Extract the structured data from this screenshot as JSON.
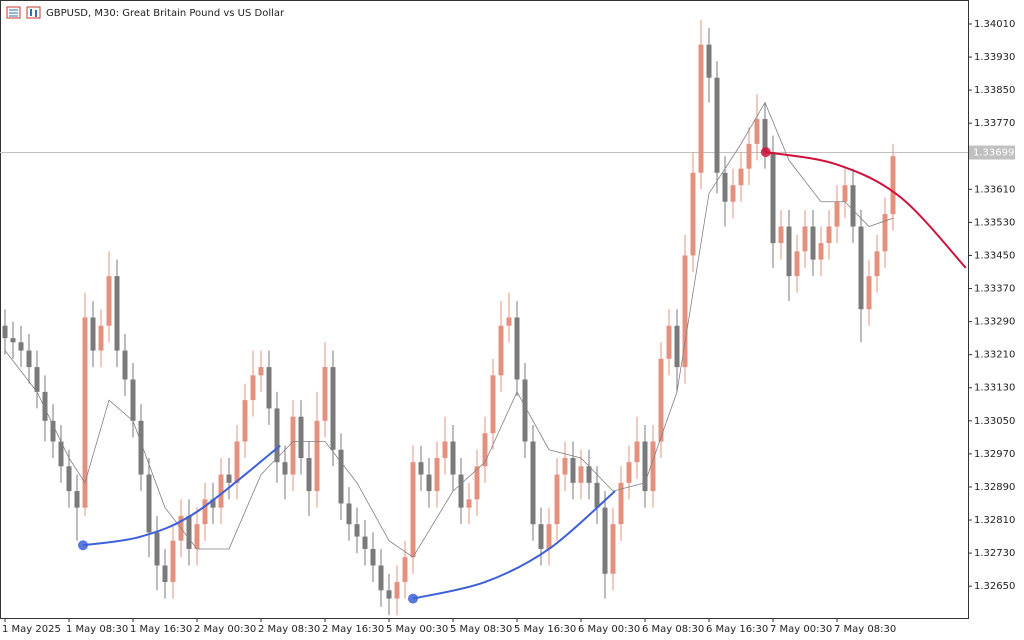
{
  "chart_data": {
    "type": "candlestick",
    "title": "GBPUSD, M30:  Great Britain Pound vs US Dollar",
    "categories": [
      "1 May 2025",
      null,
      null,
      null,
      null,
      null,
      null,
      null,
      "1 May 08:30",
      null,
      null,
      null,
      null,
      null,
      null,
      null,
      "1 May 16:30",
      null,
      null,
      null,
      null,
      null,
      null,
      null,
      "2 May 00:30",
      null,
      null,
      null,
      null,
      null,
      null,
      null,
      "2 May 08:30",
      null,
      null,
      null,
      null,
      null,
      null,
      null,
      "2 May 16:30",
      null,
      null,
      null,
      null,
      null,
      null,
      null,
      "5 May 00:30",
      null,
      null,
      null,
      null,
      null,
      null,
      null,
      "5 May 08:30",
      null,
      null,
      null,
      null,
      null,
      null,
      null,
      "5 May 16:30",
      null,
      null,
      null,
      null,
      null,
      null,
      null,
      "6 May 00:30",
      null,
      null,
      null,
      null,
      null,
      null,
      null,
      "6 May 08:30",
      null,
      null,
      null,
      null,
      null,
      null,
      null,
      "6 May 16:30",
      null,
      null,
      null,
      null,
      null,
      null,
      null,
      "7 May 00:30",
      null,
      null,
      null,
      null,
      null,
      null,
      null,
      "7 May 08:30",
      null,
      null,
      null,
      null,
      null,
      null,
      null
    ],
    "open": [
      1.3328,
      1.3325,
      1.3324,
      1.3322,
      1.3318,
      1.3312,
      1.3305,
      1.33,
      1.3294,
      1.3288,
      1.3284,
      1.333,
      1.3322,
      1.3328,
      1.334,
      1.3322,
      1.3315,
      1.3305,
      1.3292,
      1.3278,
      1.327,
      1.3266,
      1.3276,
      1.3282,
      1.3274,
      1.328,
      1.3286,
      1.3284,
      1.3292,
      1.329,
      1.33,
      1.331,
      1.3316,
      1.3318,
      1.3308,
      1.3295,
      1.3292,
      1.3306,
      1.3296,
      1.3288,
      1.3305,
      1.3318,
      1.3298,
      1.3285,
      1.328,
      1.3277,
      1.3274,
      1.327,
      1.3264,
      1.3262,
      1.3266,
      1.3272,
      1.3295,
      1.3292,
      1.3288,
      1.3296,
      1.33,
      1.3292,
      1.3284,
      1.3286,
      1.3294,
      1.3302,
      1.3316,
      1.3328,
      1.333,
      1.3315,
      1.33,
      1.328,
      1.3274,
      1.328,
      1.3292,
      1.3296,
      1.329,
      1.3294,
      1.329,
      1.3284,
      1.3268,
      1.328,
      1.329,
      1.3295,
      1.33,
      1.3288,
      1.33,
      1.332,
      1.3328,
      1.3318,
      1.3345,
      1.3365,
      1.3396,
      1.3388,
      1.3365,
      1.3358,
      1.3362,
      1.3366,
      1.3372,
      1.3378,
      1.337,
      1.3348,
      1.3352,
      1.334,
      1.3346,
      1.3352,
      1.3344,
      1.3348,
      1.3352,
      1.3358,
      1.3362,
      1.3352,
      1.3332,
      1.334,
      1.3346,
      1.3355
    ],
    "high": [
      1.3332,
      1.3329,
      1.3328,
      1.3326,
      1.3322,
      1.3316,
      1.3309,
      1.3304,
      1.3298,
      1.3292,
      1.3336,
      1.3334,
      1.3332,
      1.3346,
      1.3344,
      1.3326,
      1.3319,
      1.3309,
      1.3296,
      1.3282,
      1.3274,
      1.328,
      1.3286,
      1.3286,
      1.3284,
      1.329,
      1.329,
      1.3296,
      1.3296,
      1.3304,
      1.3314,
      1.3322,
      1.3322,
      1.3322,
      1.3312,
      1.3299,
      1.331,
      1.331,
      1.33,
      1.3312,
      1.3324,
      1.3322,
      1.3302,
      1.3289,
      1.3284,
      1.3281,
      1.3278,
      1.3274,
      1.3268,
      1.327,
      1.3276,
      1.3299,
      1.3299,
      1.3296,
      1.33,
      1.3306,
      1.3304,
      1.3296,
      1.329,
      1.3298,
      1.3306,
      1.332,
      1.3334,
      1.3336,
      1.3334,
      1.3319,
      1.3304,
      1.3284,
      1.3284,
      1.3296,
      1.33,
      1.33,
      1.3298,
      1.3298,
      1.3294,
      1.3288,
      1.3284,
      1.3294,
      1.3299,
      1.3306,
      1.3304,
      1.3304,
      1.3324,
      1.3332,
      1.3332,
      1.335,
      1.337,
      1.3402,
      1.34,
      1.3392,
      1.3369,
      1.3366,
      1.337,
      1.3376,
      1.3384,
      1.3382,
      1.3374,
      1.3356,
      1.3356,
      1.335,
      1.3356,
      1.3356,
      1.3352,
      1.3356,
      1.3362,
      1.3366,
      1.3366,
      1.3356,
      1.3344,
      1.335,
      1.3359,
      1.3372
    ],
    "low": [
      1.3321,
      1.332,
      1.3318,
      1.3314,
      1.3308,
      1.33,
      1.3296,
      1.329,
      1.3284,
      1.3276,
      1.3282,
      1.3318,
      1.3318,
      1.3324,
      1.3318,
      1.3311,
      1.3301,
      1.3288,
      1.3272,
      1.3264,
      1.3262,
      1.3262,
      1.3272,
      1.327,
      1.327,
      1.3276,
      1.328,
      1.328,
      1.3286,
      1.3286,
      1.3296,
      1.3306,
      1.3312,
      1.3304,
      1.329,
      1.3286,
      1.3288,
      1.3292,
      1.3282,
      1.3284,
      1.3301,
      1.3294,
      1.3281,
      1.3276,
      1.3273,
      1.327,
      1.3266,
      1.326,
      1.3258,
      1.3258,
      1.3262,
      1.3268,
      1.3288,
      1.3284,
      1.3284,
      1.3292,
      1.3288,
      1.328,
      1.328,
      1.3282,
      1.329,
      1.3298,
      1.3312,
      1.3324,
      1.3311,
      1.3296,
      1.3276,
      1.327,
      1.327,
      1.3276,
      1.3288,
      1.3286,
      1.3286,
      1.3286,
      1.328,
      1.3262,
      1.3264,
      1.3276,
      1.3286,
      1.3291,
      1.3284,
      1.3284,
      1.3296,
      1.3316,
      1.3312,
      1.3314,
      1.3341,
      1.3361,
      1.3382,
      1.336,
      1.3352,
      1.3354,
      1.3358,
      1.3362,
      1.3368,
      1.3366,
      1.3342,
      1.3344,
      1.3334,
      1.3336,
      1.3342,
      1.334,
      1.334,
      1.3344,
      1.3348,
      1.3354,
      1.3348,
      1.3324,
      1.3328,
      1.3336,
      1.3342,
      1.3351
    ],
    "close": [
      1.3325,
      1.3324,
      1.3322,
      1.3318,
      1.3312,
      1.3305,
      1.33,
      1.3294,
      1.3288,
      1.3284,
      1.333,
      1.3322,
      1.3328,
      1.334,
      1.3322,
      1.3315,
      1.3305,
      1.3292,
      1.3278,
      1.327,
      1.3266,
      1.3276,
      1.3282,
      1.3274,
      1.328,
      1.3286,
      1.3284,
      1.3292,
      1.329,
      1.33,
      1.331,
      1.3316,
      1.3318,
      1.3308,
      1.3295,
      1.3292,
      1.3306,
      1.3296,
      1.3288,
      1.3305,
      1.3318,
      1.3298,
      1.3285,
      1.328,
      1.3277,
      1.3274,
      1.327,
      1.3264,
      1.3262,
      1.3266,
      1.3272,
      1.3295,
      1.3292,
      1.3288,
      1.3296,
      1.33,
      1.3292,
      1.3284,
      1.3286,
      1.3294,
      1.3302,
      1.3316,
      1.3328,
      1.333,
      1.3315,
      1.33,
      1.328,
      1.3274,
      1.328,
      1.3292,
      1.3296,
      1.329,
      1.3294,
      1.329,
      1.3284,
      1.3268,
      1.328,
      1.329,
      1.3295,
      1.33,
      1.3288,
      1.33,
      1.332,
      1.3328,
      1.3318,
      1.3345,
      1.3365,
      1.3396,
      1.3388,
      1.3365,
      1.3358,
      1.3362,
      1.3366,
      1.3372,
      1.3378,
      1.337,
      1.3348,
      1.3352,
      1.334,
      1.3346,
      1.3352,
      1.3344,
      1.3348,
      1.3352,
      1.3358,
      1.3362,
      1.3352,
      1.3332,
      1.334,
      1.3346,
      1.3355,
      1.3369
    ],
    "up_color": "#e4907f",
    "down_color": "#7a7a7a",
    "ylim": [
      1.32573,
      1.34068
    ],
    "yticks": [
      {
        "value": 1.3401,
        "label": "1.34010"
      },
      {
        "value": 1.3393,
        "label": "1.33930"
      },
      {
        "value": 1.3385,
        "label": "1.33850"
      },
      {
        "value": 1.3377,
        "label": "1.33770"
      },
      {
        "value": 1.3361,
        "label": "1.33610"
      },
      {
        "value": 1.3353,
        "label": "1.33530"
      },
      {
        "value": 1.3345,
        "label": "1.33450"
      },
      {
        "value": 1.3337,
        "label": "1.33370"
      },
      {
        "value": 1.3329,
        "label": "1.33290"
      },
      {
        "value": 1.3321,
        "label": "1.33210"
      },
      {
        "value": 1.3313,
        "label": "1.33130"
      },
      {
        "value": 1.3305,
        "label": "1.33050"
      },
      {
        "value": 1.3297,
        "label": "1.32970"
      },
      {
        "value": 1.3289,
        "label": "1.32890"
      },
      {
        "value": 1.3281,
        "label": "1.32810"
      },
      {
        "value": 1.3273,
        "label": "1.32730"
      },
      {
        "value": 1.3265,
        "label": "1.32650"
      }
    ],
    "current_price": 1.33699,
    "ma": {
      "color": "#808080",
      "x": [
        0,
        4,
        8,
        10,
        13,
        16,
        20,
        24,
        28,
        32,
        36,
        40,
        44,
        48,
        51,
        56,
        60,
        64,
        68,
        72,
        76,
        80,
        84,
        88,
        92,
        95,
        98,
        102,
        105,
        108,
        111
      ],
      "values": [
        1.3322,
        1.3312,
        1.3296,
        1.329,
        1.331,
        1.3305,
        1.3284,
        1.3274,
        1.3274,
        1.3292,
        1.33,
        1.33,
        1.329,
        1.3276,
        1.3272,
        1.3288,
        1.3295,
        1.3312,
        1.3298,
        1.3296,
        1.3288,
        1.329,
        1.3312,
        1.336,
        1.3372,
        1.3382,
        1.3368,
        1.3358,
        1.3358,
        1.3352,
        1.3354
      ]
    },
    "indicators": [
      {
        "color": "#3d5fd9",
        "x": [
          9.75,
          17,
          24,
          34.4
        ],
        "values": [
          1.32749,
          1.3277,
          1.3283,
          1.3299
        ]
      },
      {
        "color": "#3d5fd9",
        "x": [
          51,
          60,
          68,
          76.25
        ],
        "values": [
          1.3262,
          1.3266,
          1.3274,
          1.3288
        ]
      },
      {
        "color": "#d0103a",
        "x": [
          95.1,
          104,
          112,
          120.1
        ],
        "values": [
          1.337,
          1.3367,
          1.3359,
          1.3342
        ]
      }
    ]
  }
}
